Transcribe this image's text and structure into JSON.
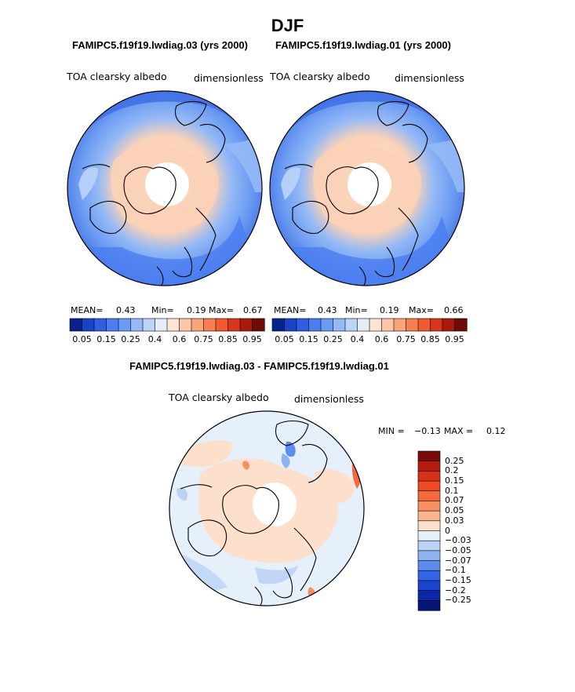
{
  "title": "DJF",
  "panels": [
    {
      "header": "FAMIPC5.f19f19.lwdiag.03 (yrs 2000)",
      "left_label": "TOA clearsky albedo",
      "right_label": "dimensionless",
      "stats": {
        "mean_label": "MEAN=",
        "mean": "0.43",
        "min_label": "Min=",
        "min": "0.19",
        "max_label": "Max=",
        "max": "0.67"
      }
    },
    {
      "header": "FAMIPC5.f19f19.lwdiag.01 (yrs 2000)",
      "left_label": "TOA clearsky albedo",
      "right_label": "dimensionless",
      "stats": {
        "mean_label": "MEAN=",
        "mean": "0.43",
        "min_label": "Min=",
        "min": "0.19",
        "max_label": "Max=",
        "max": "0.66"
      }
    }
  ],
  "abs_colorbar": {
    "labels": [
      "0.05",
      "0.15",
      "0.25",
      "0.4",
      "0.6",
      "0.75",
      "0.85",
      "0.95"
    ],
    "colors": [
      "#08228c",
      "#1a44c4",
      "#2f5fe0",
      "#4a7df0",
      "#6b9bf2",
      "#94b9f6",
      "#bdd4f9",
      "#e4eefb",
      "#fde3d2",
      "#fbc7a8",
      "#f8a47c",
      "#f57f52",
      "#ef5a2e",
      "#d8361a",
      "#a81a10",
      "#6e0a08"
    ]
  },
  "diff_panel": {
    "header": "FAMIPC5.f19f19.lwdiag.03 - FAMIPC5.f19f19.lwdiag.01",
    "left_label": "TOA clearsky albedo",
    "right_label": "dimensionless",
    "min_label": "MIN =",
    "min": "−0.13",
    "max_label": "MAX =",
    "max": "0.12"
  },
  "diff_colorbar": {
    "labels": [
      "0.25",
      "0.2",
      "0.15",
      "0.1",
      "0.07",
      "0.05",
      "0.03",
      "0",
      "−0.03",
      "−0.05",
      "−0.07",
      "−0.1",
      "−0.15",
      "−0.2",
      "−0.25"
    ],
    "colors": [
      "#7a0a06",
      "#b41c0e",
      "#d9301a",
      "#f04a22",
      "#f56a3c",
      "#f88e62",
      "#fbb48e",
      "#fde0cb",
      "#e6f0fb",
      "#bcd2f6",
      "#8fb3f1",
      "#5d8cec",
      "#3465e6",
      "#1a44d0",
      "#0c28a8",
      "#061675"
    ]
  }
}
